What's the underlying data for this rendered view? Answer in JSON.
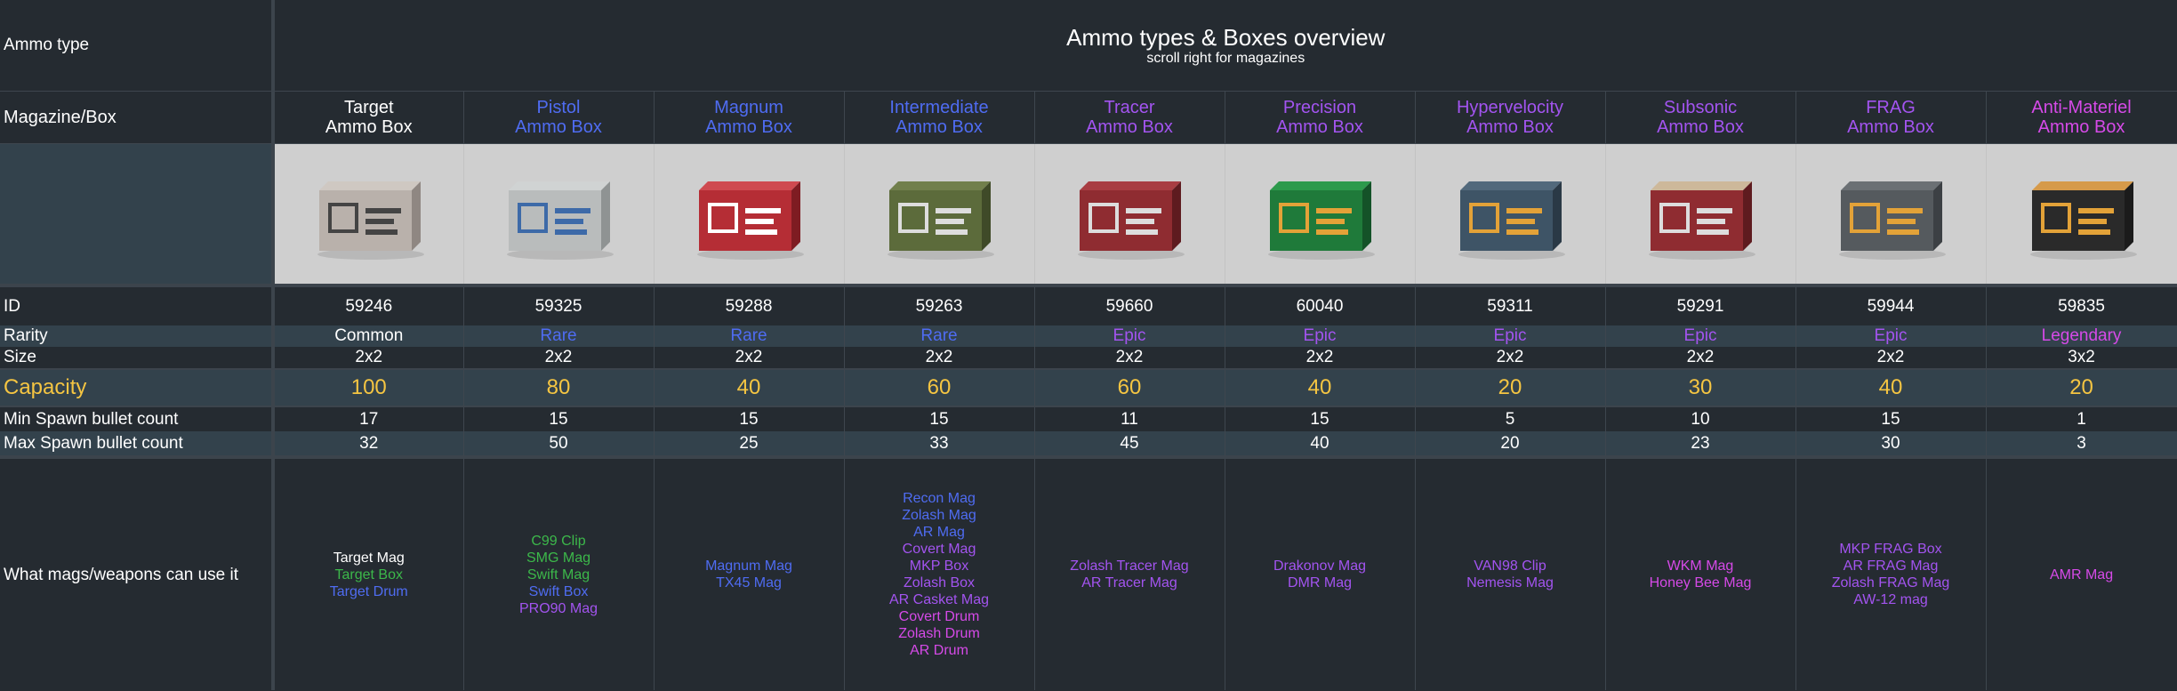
{
  "labels": {
    "ammo_type": "Ammo type",
    "magazine_box": "Magazine/Box",
    "id": "ID",
    "rarity": "Rarity",
    "size": "Size",
    "capacity": "Capacity",
    "min_spawn": "Min Spawn bullet count",
    "max_spawn": "Max Spawn bullet count",
    "mags": "What mags/weapons can use it"
  },
  "title": "Ammo types & Boxes overview",
  "subtitle": "scroll right for magazines",
  "colors": {
    "Common": "#ffffff",
    "Rare": "#4f6cf2",
    "Epic": "#a354f0",
    "Legendary": "#d64ae8",
    "capacity": "#f5c542",
    "green": "#3cb84a",
    "blue": "#4f6cf2",
    "purple": "#a354f0",
    "magenta": "#d64ae8"
  },
  "boxes": [
    {
      "name1": "Target",
      "name2": "Ammo Box",
      "name_color": "white",
      "icon": "target-ammo-box-icon",
      "id": "59246",
      "rarity": "Common",
      "rarity_class": "common",
      "size": "2x2",
      "capacity": "100",
      "min": "17",
      "max": "32",
      "mags": [
        {
          "t": "Target Mag",
          "c": "white"
        },
        {
          "t": "Target Box",
          "c": "green"
        },
        {
          "t": "Target Drum",
          "c": "blue"
        }
      ]
    },
    {
      "name1": "Pistol",
      "name2": "Ammo Box",
      "name_color": "rare",
      "icon": "pistol-ammo-box-icon",
      "id": "59325",
      "rarity": "Rare",
      "rarity_class": "rare",
      "size": "2x2",
      "capacity": "80",
      "min": "15",
      "max": "50",
      "mags": [
        {
          "t": "C99 Clip",
          "c": "green"
        },
        {
          "t": "SMG Mag",
          "c": "green"
        },
        {
          "t": "Swift Mag",
          "c": "green"
        },
        {
          "t": "Swift Box",
          "c": "blue"
        },
        {
          "t": "PRO90 Mag",
          "c": "purple"
        }
      ]
    },
    {
      "name1": "Magnum",
      "name2": "Ammo Box",
      "name_color": "rare",
      "icon": "magnum-ammo-box-icon",
      "id": "59288",
      "rarity": "Rare",
      "rarity_class": "rare",
      "size": "2x2",
      "capacity": "40",
      "min": "15",
      "max": "25",
      "mags": [
        {
          "t": "Magnum Mag",
          "c": "blue"
        },
        {
          "t": "TX45 Mag",
          "c": "blue"
        }
      ]
    },
    {
      "name1": "Intermediate",
      "name2": "Ammo Box",
      "name_color": "rare",
      "icon": "intermediate-ammo-box-icon",
      "id": "59263",
      "rarity": "Rare",
      "rarity_class": "rare",
      "size": "2x2",
      "capacity": "60",
      "min": "15",
      "max": "33",
      "mags": [
        {
          "t": "Recon Mag",
          "c": "blue"
        },
        {
          "t": "Zolash Mag",
          "c": "blue"
        },
        {
          "t": "AR Mag",
          "c": "blue"
        },
        {
          "t": "Covert Mag",
          "c": "purple"
        },
        {
          "t": "MKP Box",
          "c": "purple"
        },
        {
          "t": "Zolash Box",
          "c": "purple"
        },
        {
          "t": "AR Casket Mag",
          "c": "purple"
        },
        {
          "t": "Covert Drum",
          "c": "magenta"
        },
        {
          "t": "Zolash Drum",
          "c": "magenta"
        },
        {
          "t": "AR Drum",
          "c": "magenta"
        }
      ]
    },
    {
      "name1": "Tracer",
      "name2": "Ammo Box",
      "name_color": "epic",
      "icon": "tracer-ammo-box-icon",
      "id": "59660",
      "rarity": "Epic",
      "rarity_class": "epic",
      "size": "2x2",
      "capacity": "60",
      "min": "11",
      "max": "45",
      "mags": [
        {
          "t": "Zolash Tracer Mag",
          "c": "purple"
        },
        {
          "t": "AR Tracer Mag",
          "c": "purple"
        }
      ]
    },
    {
      "name1": "Precision",
      "name2": "Ammo Box",
      "name_color": "epic",
      "icon": "precision-ammo-box-icon",
      "id": "60040",
      "rarity": "Epic",
      "rarity_class": "epic",
      "size": "2x2",
      "capacity": "40",
      "min": "15",
      "max": "40",
      "mags": [
        {
          "t": "Drakonov Mag",
          "c": "purple"
        },
        {
          "t": "DMR Mag",
          "c": "purple"
        }
      ]
    },
    {
      "name1": "Hypervelocity",
      "name2": "Ammo Box",
      "name_color": "epic",
      "icon": "hypervelocity-ammo-box-icon",
      "id": "59311",
      "rarity": "Epic",
      "rarity_class": "epic",
      "size": "2x2",
      "capacity": "20",
      "min": "5",
      "max": "20",
      "mags": [
        {
          "t": "VAN98 Clip",
          "c": "purple"
        },
        {
          "t": "Nemesis Mag",
          "c": "purple"
        }
      ]
    },
    {
      "name1": "Subsonic",
      "name2": "Ammo Box",
      "name_color": "epic",
      "icon": "subsonic-ammo-box-icon",
      "id": "59291",
      "rarity": "Epic",
      "rarity_class": "epic",
      "size": "2x2",
      "capacity": "30",
      "min": "10",
      "max": "23",
      "mags": [
        {
          "t": "WKM Mag",
          "c": "magenta"
        },
        {
          "t": "Honey Bee Mag",
          "c": "magenta"
        }
      ]
    },
    {
      "name1": "FRAG",
      "name2": "Ammo Box",
      "name_color": "epic",
      "icon": "frag-ammo-box-icon",
      "id": "59944",
      "rarity": "Epic",
      "rarity_class": "epic",
      "size": "2x2",
      "capacity": "40",
      "min": "15",
      "max": "30",
      "mags": [
        {
          "t": "MKP FRAG Box",
          "c": "purple"
        },
        {
          "t": "AR FRAG Mag",
          "c": "purple"
        },
        {
          "t": "Zolash FRAG Mag",
          "c": "purple"
        },
        {
          "t": "AW-12 mag",
          "c": "purple"
        }
      ]
    },
    {
      "name1": "Anti-Materiel",
      "name2": "Ammo Box",
      "name_color": "legendary",
      "icon": "anti-materiel-ammo-box-icon",
      "id": "59835",
      "rarity": "Legendary",
      "rarity_class": "legendary",
      "size": "3x2",
      "capacity": "20",
      "min": "1",
      "max": "3",
      "mags": [
        {
          "t": "AMR Mag",
          "c": "magenta"
        }
      ]
    }
  ]
}
